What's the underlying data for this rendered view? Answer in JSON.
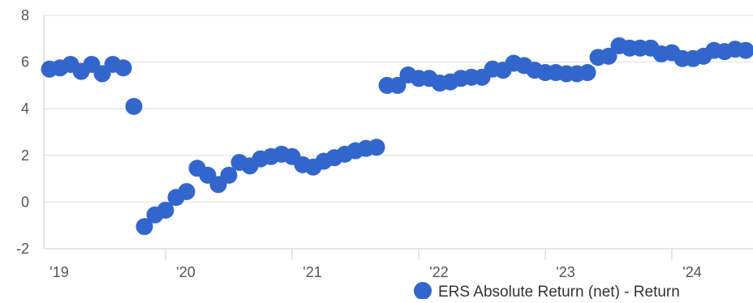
{
  "chart_data": {
    "type": "scatter",
    "title": "",
    "xlabel": "",
    "ylabel": "",
    "ylim": [
      -2,
      8
    ],
    "y_ticks": [
      "8",
      "6",
      "4",
      "2",
      "0",
      "-2"
    ],
    "x_ticks": [
      "'19",
      "'20",
      "'21",
      "'22",
      "'23",
      "'24"
    ],
    "grid": true,
    "legend_position": "bottom-right",
    "colors": {
      "series": "#3366cc",
      "grid": "#e0e0e0",
      "axis": "#cccccc",
      "tick_text": "#555555"
    },
    "series": [
      {
        "name": "ERS Absolute Return (net) - Return",
        "points": [
          {
            "x": "2019-01",
            "y": 5.7
          },
          {
            "x": "2019-02",
            "y": 5.75
          },
          {
            "x": "2019-03",
            "y": 5.9
          },
          {
            "x": "2019-04",
            "y": 5.6
          },
          {
            "x": "2019-05",
            "y": 5.9
          },
          {
            "x": "2019-06",
            "y": 5.5
          },
          {
            "x": "2019-07",
            "y": 5.9
          },
          {
            "x": "2019-08",
            "y": 5.75
          },
          {
            "x": "2019-09",
            "y": 4.1
          },
          {
            "x": "2019-10",
            "y": -1.05
          },
          {
            "x": "2019-11",
            "y": -0.55
          },
          {
            "x": "2019-12",
            "y": -0.35
          },
          {
            "x": "2020-01",
            "y": 0.2
          },
          {
            "x": "2020-02",
            "y": 0.45
          },
          {
            "x": "2020-03",
            "y": 1.45
          },
          {
            "x": "2020-04",
            "y": 1.15
          },
          {
            "x": "2020-05",
            "y": 0.75
          },
          {
            "x": "2020-06",
            "y": 1.15
          },
          {
            "x": "2020-07",
            "y": 1.7
          },
          {
            "x": "2020-08",
            "y": 1.55
          },
          {
            "x": "2020-09",
            "y": 1.85
          },
          {
            "x": "2020-10",
            "y": 1.95
          },
          {
            "x": "2020-11",
            "y": 2.05
          },
          {
            "x": "2020-12",
            "y": 1.95
          },
          {
            "x": "2021-01",
            "y": 1.6
          },
          {
            "x": "2021-02",
            "y": 1.5
          },
          {
            "x": "2021-03",
            "y": 1.75
          },
          {
            "x": "2021-04",
            "y": 1.9
          },
          {
            "x": "2021-05",
            "y": 2.05
          },
          {
            "x": "2021-06",
            "y": 2.2
          },
          {
            "x": "2021-07",
            "y": 2.3
          },
          {
            "x": "2021-08",
            "y": 2.35
          },
          {
            "x": "2021-09",
            "y": 5.0
          },
          {
            "x": "2021-10",
            "y": 5.0
          },
          {
            "x": "2021-11",
            "y": 5.45
          },
          {
            "x": "2021-12",
            "y": 5.3
          },
          {
            "x": "2022-01",
            "y": 5.3
          },
          {
            "x": "2022-02",
            "y": 5.1
          },
          {
            "x": "2022-03",
            "y": 5.15
          },
          {
            "x": "2022-04",
            "y": 5.3
          },
          {
            "x": "2022-05",
            "y": 5.35
          },
          {
            "x": "2022-06",
            "y": 5.35
          },
          {
            "x": "2022-07",
            "y": 5.7
          },
          {
            "x": "2022-08",
            "y": 5.65
          },
          {
            "x": "2022-09",
            "y": 5.95
          },
          {
            "x": "2022-10",
            "y": 5.85
          },
          {
            "x": "2022-11",
            "y": 5.65
          },
          {
            "x": "2022-12",
            "y": 5.55
          },
          {
            "x": "2023-01",
            "y": 5.55
          },
          {
            "x": "2023-02",
            "y": 5.5
          },
          {
            "x": "2023-03",
            "y": 5.5
          },
          {
            "x": "2023-04",
            "y": 5.55
          },
          {
            "x": "2023-05",
            "y": 6.2
          },
          {
            "x": "2023-06",
            "y": 6.25
          },
          {
            "x": "2023-07",
            "y": 6.7
          },
          {
            "x": "2023-08",
            "y": 6.6
          },
          {
            "x": "2023-09",
            "y": 6.6
          },
          {
            "x": "2023-10",
            "y": 6.6
          },
          {
            "x": "2023-11",
            "y": 6.35
          },
          {
            "x": "2023-12",
            "y": 6.4
          },
          {
            "x": "2024-01",
            "y": 6.15
          },
          {
            "x": "2024-02",
            "y": 6.15
          },
          {
            "x": "2024-03",
            "y": 6.25
          },
          {
            "x": "2024-04",
            "y": 6.5
          },
          {
            "x": "2024-05",
            "y": 6.45
          },
          {
            "x": "2024-06",
            "y": 6.55
          },
          {
            "x": "2024-07",
            "y": 6.5
          }
        ]
      }
    ]
  }
}
